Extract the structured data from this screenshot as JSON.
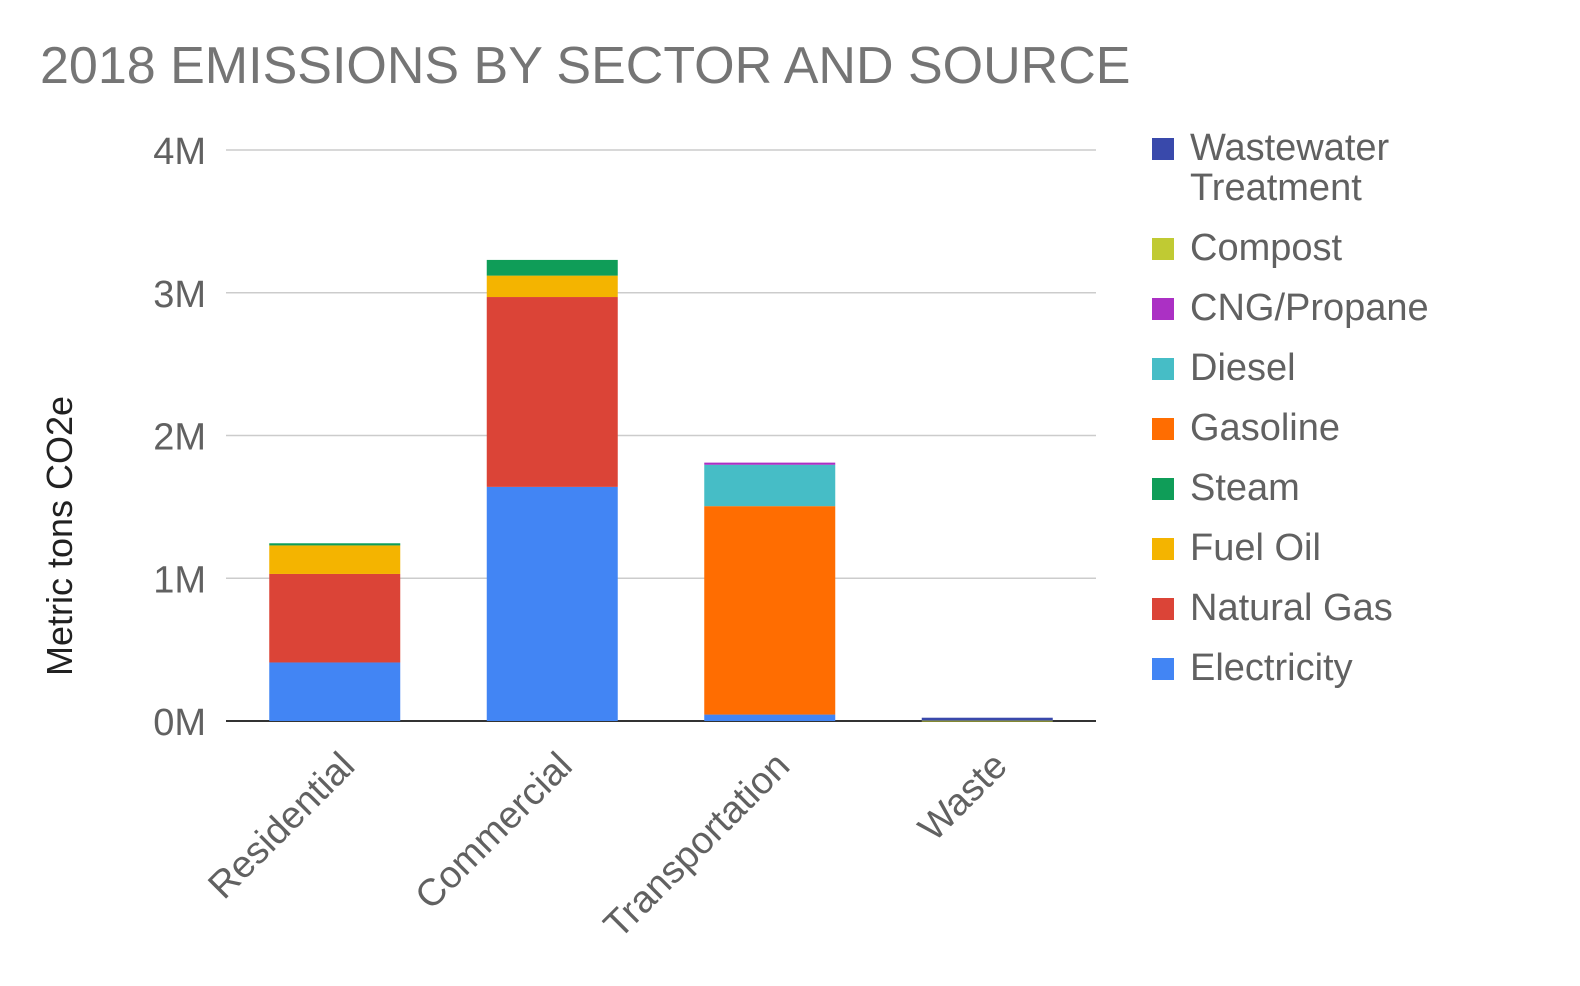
{
  "chart_data": {
    "type": "bar",
    "stacked": true,
    "title": "2018 EMISSIONS BY SECTOR AND SOURCE",
    "ylabel": "Metric tons CO2e",
    "xlabel": "",
    "ylim": [
      0,
      4000000
    ],
    "yticks": [
      "0M",
      "1M",
      "2M",
      "3M",
      "4M"
    ],
    "grid": true,
    "legend_position": "right",
    "categories": [
      "Residential",
      "Commercial",
      "Transportation",
      "Waste"
    ],
    "series": [
      {
        "name": "Electricity",
        "color": "#4285f4",
        "values": [
          410000,
          1640000,
          45000,
          0
        ]
      },
      {
        "name": "Natural Gas",
        "color": "#db4437",
        "values": [
          620000,
          1330000,
          0,
          0
        ]
      },
      {
        "name": "Fuel Oil",
        "color": "#f4b400",
        "values": [
          200000,
          150000,
          0,
          0
        ]
      },
      {
        "name": "Steam",
        "color": "#0f9d58",
        "values": [
          15000,
          110000,
          0,
          0
        ]
      },
      {
        "name": "Gasoline",
        "color": "#ff6d01",
        "values": [
          0,
          0,
          1460000,
          0
        ]
      },
      {
        "name": "Diesel",
        "color": "#46bdc6",
        "values": [
          0,
          0,
          290000,
          0
        ]
      },
      {
        "name": "CNG/Propane",
        "color": "#ab30c4",
        "values": [
          0,
          0,
          15000,
          0
        ]
      },
      {
        "name": "Compost",
        "color": "#c0ca33",
        "values": [
          0,
          0,
          0,
          3000
        ]
      },
      {
        "name": "Wastewater Treatment",
        "color": "#3949ab",
        "values": [
          0,
          0,
          0,
          20000
        ]
      }
    ]
  },
  "legend": {
    "items": [
      {
        "label_lines": [
          "Wastewater",
          "Treatment"
        ],
        "color": "#3949ab"
      },
      {
        "label_lines": [
          "Compost"
        ],
        "color": "#c0ca33"
      },
      {
        "label_lines": [
          "CNG/Propane"
        ],
        "color": "#ab30c4"
      },
      {
        "label_lines": [
          "Diesel"
        ],
        "color": "#46bdc6"
      },
      {
        "label_lines": [
          "Gasoline"
        ],
        "color": "#ff6d01"
      },
      {
        "label_lines": [
          "Steam"
        ],
        "color": "#0f9d58"
      },
      {
        "label_lines": [
          "Fuel Oil"
        ],
        "color": "#f4b400"
      },
      {
        "label_lines": [
          "Natural Gas"
        ],
        "color": "#db4437"
      },
      {
        "label_lines": [
          "Electricity"
        ],
        "color": "#4285f4"
      }
    ]
  }
}
